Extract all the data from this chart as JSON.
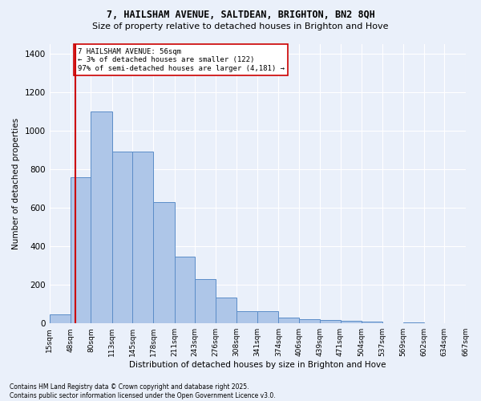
{
  "title": "7, HAILSHAM AVENUE, SALTDEAN, BRIGHTON, BN2 8QH",
  "subtitle": "Size of property relative to detached houses in Brighton and Hove",
  "xlabel": "Distribution of detached houses by size in Brighton and Hove",
  "ylabel": "Number of detached properties",
  "footer1": "Contains HM Land Registry data © Crown copyright and database right 2025.",
  "footer2": "Contains public sector information licensed under the Open Government Licence v3.0.",
  "annotation_title": "7 HAILSHAM AVENUE: 56sqm",
  "annotation_line2": "← 3% of detached houses are smaller (122)",
  "annotation_line3": "97% of semi-detached houses are larger (4,181) →",
  "bins": [
    15,
    48,
    80,
    113,
    145,
    178,
    211,
    243,
    276,
    308,
    341,
    374,
    406,
    439,
    471,
    504,
    537,
    569,
    602,
    634,
    667
  ],
  "heights": [
    48,
    760,
    1100,
    890,
    890,
    630,
    345,
    228,
    135,
    65,
    65,
    30,
    20,
    18,
    15,
    10,
    0,
    5,
    0,
    0
  ],
  "bar_color": "#aec6e8",
  "bar_edge_color": "#5b8dc8",
  "bg_color": "#eaf0fa",
  "grid_color": "#ffffff",
  "vline_x": 56,
  "vline_color": "#cc0000",
  "ylim": [
    0,
    1450
  ],
  "yticks": [
    0,
    200,
    400,
    600,
    800,
    1000,
    1200,
    1400
  ],
  "x_labels": [
    "15sqm",
    "48sqm",
    "80sqm",
    "113sqm",
    "145sqm",
    "178sqm",
    "211sqm",
    "243sqm",
    "276sqm",
    "308sqm",
    "341sqm",
    "374sqm",
    "406sqm",
    "439sqm",
    "471sqm",
    "504sqm",
    "537sqm",
    "569sqm",
    "602sqm",
    "634sqm",
    "667sqm"
  ]
}
